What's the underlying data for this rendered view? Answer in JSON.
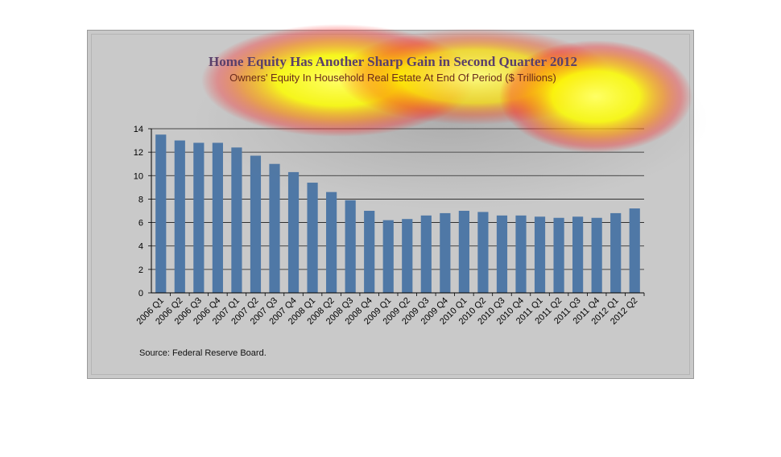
{
  "chart_data": {
    "type": "bar",
    "title": "Home Equity Has Another Sharp Gain in Second Quarter 2012",
    "subtitle": "Owners' Equity In Household Real Estate At End Of Period ($ Trillions)",
    "xlabel": "",
    "ylabel": "",
    "ylim": [
      0,
      14
    ],
    "yticks": [
      0,
      2,
      4,
      6,
      8,
      10,
      12,
      14
    ],
    "grid": true,
    "categories": [
      "2006 Q1",
      "2006 Q2",
      "2006 Q3",
      "2006 Q4",
      "2007 Q1",
      "2007 Q2",
      "2007 Q3",
      "2007 Q4",
      "2008 Q1",
      "2008 Q2",
      "2008 Q3",
      "2008 Q4",
      "2009 Q1",
      "2009 Q2",
      "2009 Q3",
      "2009 Q4",
      "2010 Q1",
      "2010 Q2",
      "2010 Q3",
      "2010 Q4",
      "2011 Q1",
      "2011 Q2",
      "2011 Q3",
      "2011 Q4",
      "2012 Q1",
      "2012 Q2"
    ],
    "values": [
      13.5,
      13.0,
      12.8,
      12.8,
      12.4,
      11.7,
      11.0,
      10.3,
      9.4,
      8.6,
      7.9,
      7.0,
      6.2,
      6.3,
      6.6,
      6.8,
      7.0,
      6.9,
      6.6,
      6.6,
      6.5,
      6.4,
      6.5,
      6.4,
      6.8,
      7.2
    ],
    "bar_color": "#4f78a6",
    "source": "Source:  Federal Reserve Board."
  }
}
